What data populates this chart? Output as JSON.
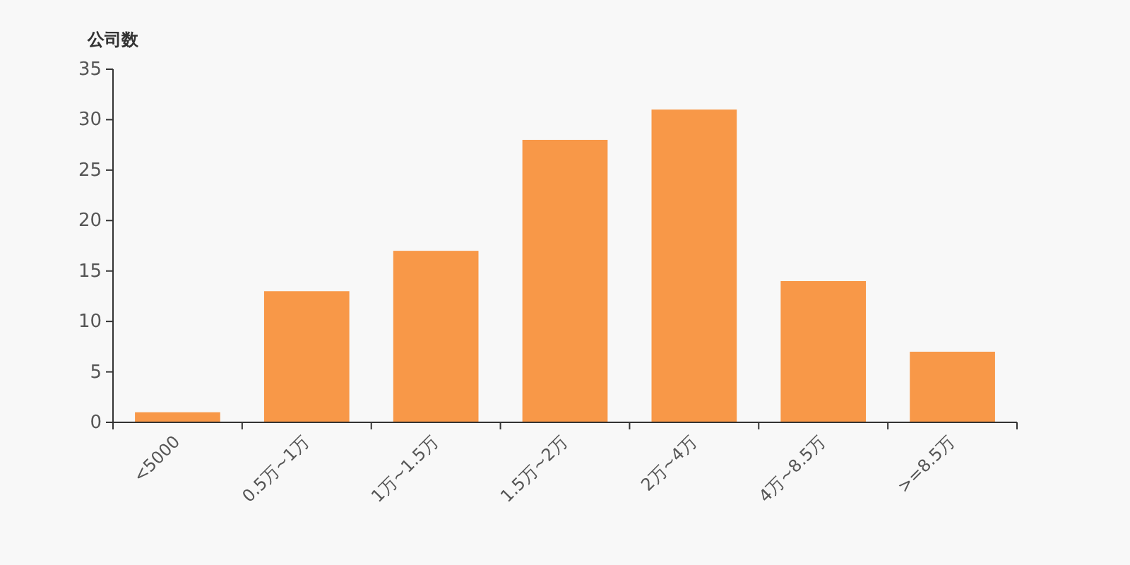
{
  "chart_data": {
    "type": "bar",
    "ylabel": "公司数",
    "categories": [
      "<5000",
      "0.5万~1万",
      "1万~1.5万",
      "1.5万~2万",
      "2万~4万",
      "4万~8.5万",
      ">=8.5万"
    ],
    "values": [
      1,
      13,
      17,
      28,
      31,
      14,
      7
    ],
    "color": "#f89848",
    "ylim": [
      0,
      35
    ],
    "yticks": [
      0,
      5,
      10,
      15,
      20,
      25,
      30,
      35
    ],
    "grid": false
  }
}
